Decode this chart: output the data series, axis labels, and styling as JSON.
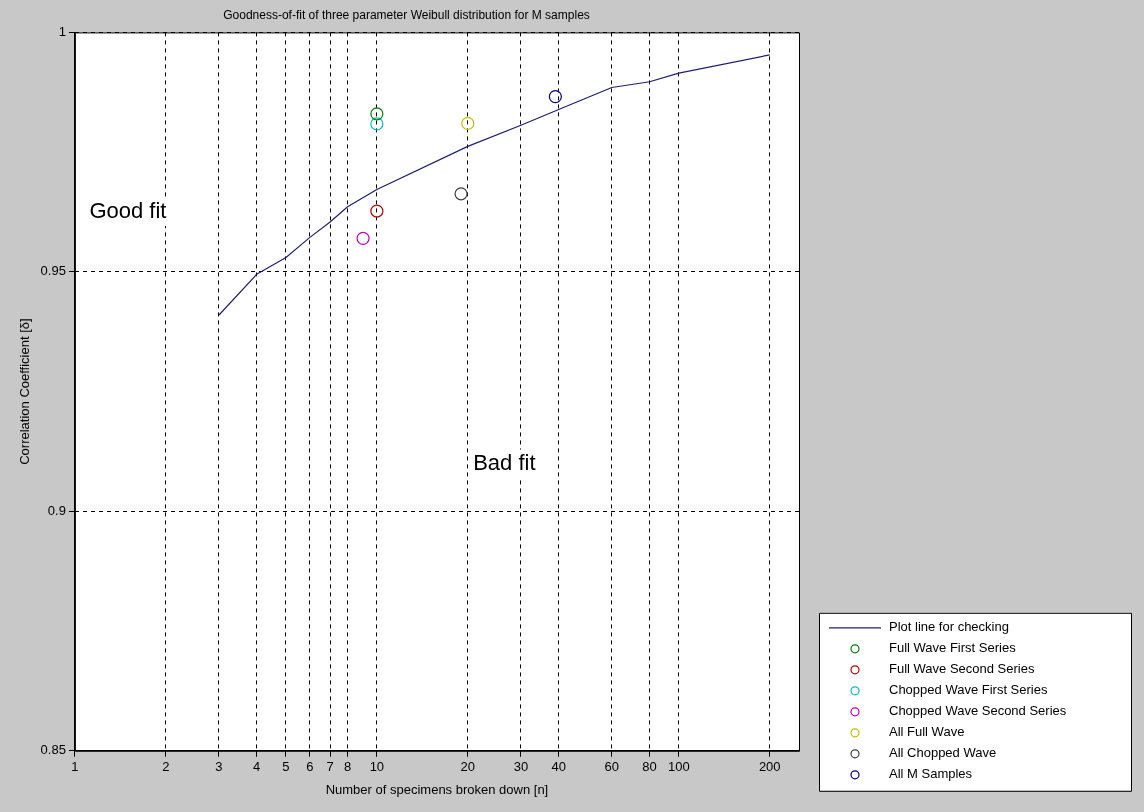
{
  "chart_data": {
    "type": "scatter",
    "title": "Goodness-of-fit of three parameter Weibull distribution for M samples",
    "xlabel": "Number of specimens broken down [n]",
    "ylabel": "Correlation Coefficient [δ]",
    "log": "x",
    "xlim": [
      1,
      250
    ],
    "xticks": [
      1,
      2,
      3,
      4,
      5,
      6,
      7,
      8,
      10,
      20,
      30,
      40,
      60,
      80,
      100,
      200
    ],
    "ylim": [
      0.85,
      1
    ],
    "yticks": [
      0.85,
      0.9,
      0.95,
      1
    ],
    "grid": true,
    "legend": "bottom right",
    "marker": "circle",
    "annotations": [
      "Good fit",
      "Bad fit"
    ],
    "series": [
      {
        "name": "Plot line for checking",
        "type": "line",
        "marker": "none",
        "line_style": "solid",
        "color": "#1f1f6e",
        "x": [
          3,
          4,
          5,
          6,
          7,
          8,
          10,
          20,
          30,
          40,
          60,
          80,
          100,
          200
        ],
        "values": [
          0.941,
          0.9495,
          0.953,
          0.9572,
          0.9604,
          0.9636,
          0.9672,
          0.9762,
          0.9806,
          0.9839,
          0.9885,
          0.9897,
          0.9915,
          0.9953
        ]
      },
      {
        "name": "Full Wave First Series",
        "color": "#008000",
        "x": [
          10
        ],
        "values": [
          0.983
        ]
      },
      {
        "name": "Full Wave Second Series",
        "color": "#bf0000",
        "x": [
          10
        ],
        "values": [
          0.9627
        ]
      },
      {
        "name": "Chopped Wave First Series",
        "color": "#00bfbf",
        "x": [
          10
        ],
        "values": [
          0.9809
        ]
      },
      {
        "name": "Chopped Wave Second Series",
        "color": "#bf00bf",
        "x": [
          9
        ],
        "values": [
          0.957
        ]
      },
      {
        "name": "All Full Wave",
        "color": "#bfbf00",
        "x": [
          20
        ],
        "values": [
          0.981
        ]
      },
      {
        "name": "All Chopped Wave",
        "color": "#404040",
        "x": [
          19
        ],
        "values": [
          0.9663
        ]
      },
      {
        "name": "All M Samples",
        "color": "#000080",
        "x": [
          39
        ],
        "values": [
          0.9866
        ]
      }
    ]
  }
}
